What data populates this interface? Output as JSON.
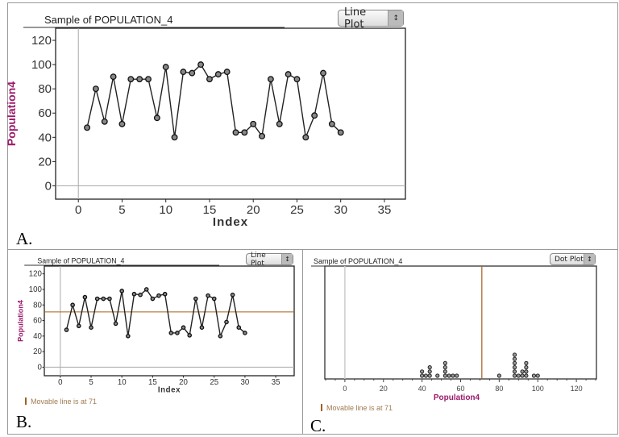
{
  "colors": {
    "line": "#222222",
    "point_fill": "#888888",
    "axis_label": "#9b1b6b",
    "movable_line": "#a0601e",
    "movable_text": "#a07a50"
  },
  "chart_data": [
    {
      "panel": "A",
      "type": "line",
      "title": "Sample of POPULATION_4",
      "plot_type_label": "Line Plot",
      "xlabel": "Index",
      "ylabel": "Population4",
      "xlim": [
        -2.6,
        37.4
      ],
      "ylim": [
        -11,
        130
      ],
      "xticks": [
        0,
        5,
        10,
        15,
        20,
        25,
        30,
        35
      ],
      "yticks": [
        0,
        20,
        40,
        60,
        80,
        100,
        120
      ],
      "x": [
        1,
        2,
        3,
        4,
        5,
        6,
        7,
        8,
        9,
        10,
        11,
        12,
        13,
        14,
        15,
        16,
        17,
        18,
        19,
        20,
        21,
        22,
        23,
        24,
        25,
        26,
        27,
        28,
        29,
        30
      ],
      "values": [
        48,
        80,
        53,
        90,
        51,
        88,
        88,
        88,
        56,
        98,
        40,
        94,
        93,
        100,
        88,
        92,
        94,
        44,
        44,
        51,
        41,
        88,
        51,
        92,
        88,
        40,
        58,
        93,
        51,
        44
      ],
      "panel_label": "A."
    },
    {
      "panel": "B",
      "type": "line",
      "title": "Sample of POPULATION_4",
      "plot_type_label": "Line Plot",
      "xlabel": "Index",
      "ylabel": "Population4",
      "xlim": [
        -2.6,
        38
      ],
      "ylim": [
        -11,
        130
      ],
      "xticks": [
        0,
        5,
        10,
        15,
        20,
        25,
        30,
        35
      ],
      "yticks": [
        0,
        20,
        40,
        60,
        80,
        100,
        120
      ],
      "x": [
        1,
        2,
        3,
        4,
        5,
        6,
        7,
        8,
        9,
        10,
        11,
        12,
        13,
        14,
        15,
        16,
        17,
        18,
        19,
        20,
        21,
        22,
        23,
        24,
        25,
        26,
        27,
        28,
        29,
        30
      ],
      "values": [
        48,
        80,
        53,
        90,
        51,
        88,
        88,
        88,
        56,
        98,
        40,
        94,
        93,
        100,
        88,
        92,
        94,
        44,
        44,
        51,
        41,
        88,
        51,
        92,
        88,
        40,
        58,
        93,
        51,
        44
      ],
      "movable_line": 71,
      "movable_text": "Movable line is at 71",
      "panel_label": "B."
    },
    {
      "panel": "C",
      "type": "scatter",
      "subtype": "dot plot",
      "title": "Sample of POPULATION_4",
      "plot_type_label": "Dot Plot",
      "xlabel": "Population4",
      "xlim": [
        -10.4,
        130.4
      ],
      "xticks": [
        0,
        20,
        40,
        60,
        80,
        100,
        120
      ],
      "values": [
        48,
        80,
        53,
        90,
        51,
        88,
        88,
        88,
        56,
        98,
        40,
        94,
        93,
        100,
        88,
        92,
        94,
        44,
        44,
        51,
        41,
        88,
        51,
        92,
        88,
        40,
        58,
        93,
        51,
        44
      ],
      "movable_line": 71,
      "movable_text": "Movable line is at 71",
      "panel_label": "C."
    }
  ]
}
